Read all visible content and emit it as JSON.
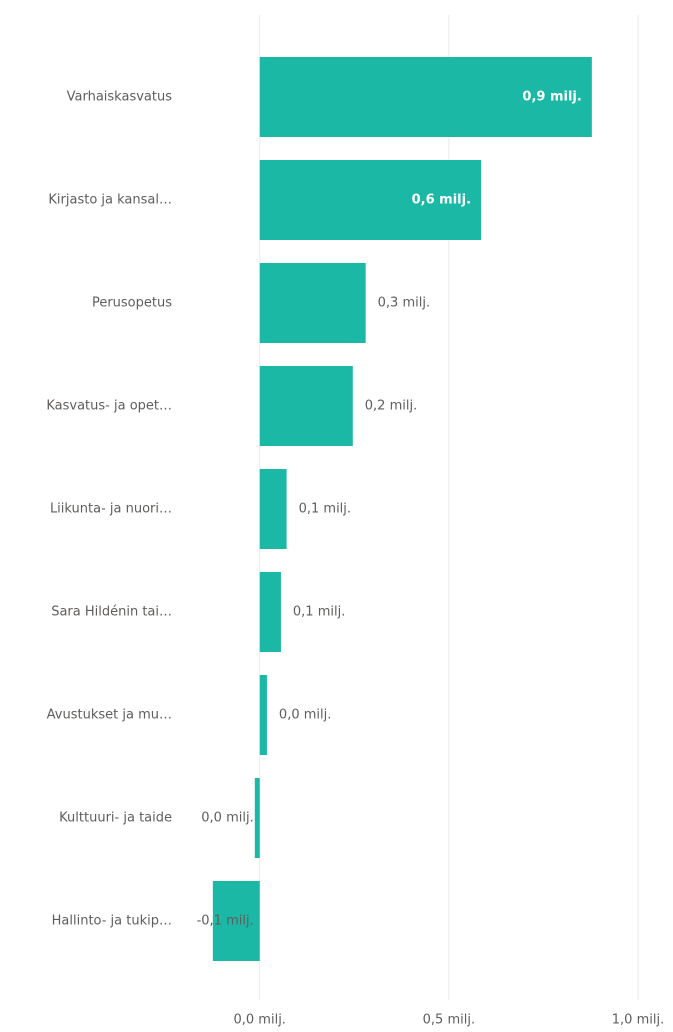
{
  "chart_data": {
    "type": "hbar",
    "categories": [
      "Varhaiskasvatus",
      "Kirjasto ja kansal…",
      "Perusopetus",
      "Kasvatus- ja opet…",
      "Liikunta- ja nuori…",
      "Sara Hildénin tai…",
      "Avustukset ja mu…",
      "Kulttuuri- ja taide",
      "Hallinto- ja tukip…"
    ],
    "values": [
      0.878,
      0.585,
      0.28,
      0.246,
      0.071,
      0.056,
      0.019,
      -0.013,
      -0.124
    ],
    "value_labels": [
      "0,9 milj.",
      "0,6 milj.",
      "0,3 milj.",
      "0,2 milj.",
      "0,1 milj.",
      "0,1 milj.",
      "0,0 milj.",
      "0,0 milj.",
      "-0,1 milj."
    ],
    "color": "#1ab8a5",
    "xlim": [
      -0.15,
      1.0
    ],
    "xticks": [
      {
        "value": 0,
        "label": "0,0 milj."
      },
      {
        "value": 0.5,
        "label": "0,5 milj."
      },
      {
        "value": 1.0,
        "label": "1,0 milj."
      }
    ],
    "grid": true
  }
}
